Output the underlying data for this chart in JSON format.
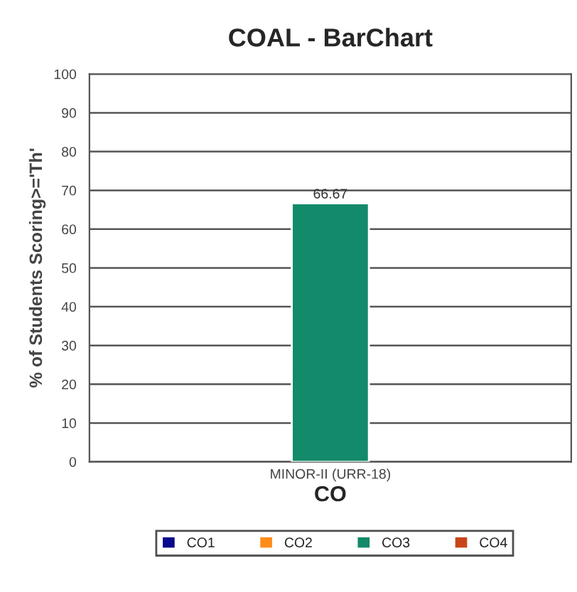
{
  "chart_data": {
    "type": "bar",
    "title": "COAL - BarChart",
    "xlabel": "CO",
    "ylabel": "% of Students Scoring>='Th'",
    "categories": [
      "MINOR-II (URR-18)"
    ],
    "series": [
      {
        "name": "CO1",
        "color": "#0a0a8c",
        "values": [
          null
        ]
      },
      {
        "name": "CO2",
        "color": "#ff8c1a",
        "values": [
          null
        ]
      },
      {
        "name": "CO3",
        "color": "#138a6a",
        "values": [
          66.67
        ]
      },
      {
        "name": "CO4",
        "color": "#c8461a",
        "values": [
          null
        ]
      }
    ],
    "ylim": [
      0,
      100
    ],
    "yticks": [
      0,
      10,
      20,
      30,
      40,
      50,
      60,
      70,
      80,
      90,
      100
    ],
    "grid": "y",
    "legend": "bottom",
    "data_labels": true
  }
}
